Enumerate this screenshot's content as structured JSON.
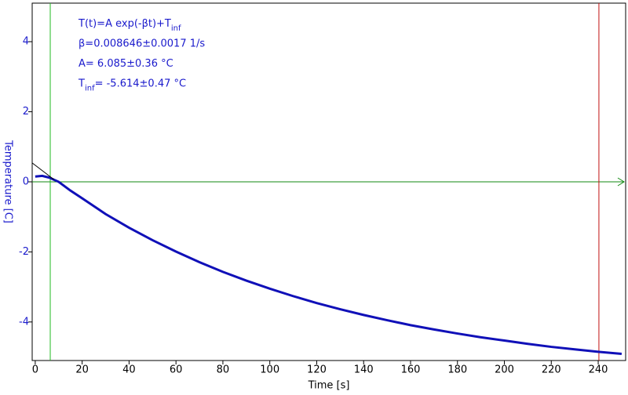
{
  "chart_data": {
    "type": "line",
    "xlabel": "Time [s]",
    "ylabel": "Temperature [C]",
    "xlim": [
      -1.3,
      251.7
    ],
    "ylim": [
      -5.1,
      5.1
    ],
    "xticks": [
      0,
      20,
      40,
      60,
      80,
      100,
      120,
      140,
      160,
      180,
      200,
      220,
      240
    ],
    "yticks": [
      -4,
      -2,
      0,
      2,
      4
    ],
    "series": [
      {
        "color": "#1010b8",
        "width": 3,
        "x": [
          0,
          3,
          6,
          10,
          15,
          20,
          30,
          40,
          50,
          60,
          70,
          80,
          90,
          100,
          110,
          120,
          130,
          140,
          150,
          160,
          170,
          180,
          190,
          200,
          210,
          220,
          230,
          240,
          250
        ],
        "values": [
          0.15,
          0.17,
          0.12,
          0.0,
          -0.25,
          -0.47,
          -0.92,
          -1.31,
          -1.665,
          -1.99,
          -2.292,
          -2.57,
          -2.819,
          -3.05,
          -3.263,
          -3.46,
          -3.636,
          -3.8,
          -3.95,
          -4.09,
          -4.214,
          -4.33,
          -4.437,
          -4.53,
          -4.624,
          -4.71,
          -4.781,
          -4.85,
          -4.91
        ]
      },
      {
        "color": "#000000",
        "width": 1,
        "x": [
          -1.3,
          8
        ],
        "values": [
          0.54,
          0.065
        ]
      }
    ],
    "cursors": [
      {
        "x": 6.4,
        "color": "#22bb22"
      },
      {
        "x": 240.3,
        "color": "#c01010"
      }
    ],
    "hline": {
      "y": 0,
      "color": "#118811"
    },
    "annotations": [
      [
        {
          "text": "T(t)=A exp(-βt)+T",
          "sub": false
        },
        {
          "text": "inf",
          "sub": true
        }
      ],
      [
        {
          "text": "β=0.008646±0.0017 1/s",
          "sub": false
        }
      ],
      [
        {
          "text": "A= 6.085±0.36 °C",
          "sub": false
        }
      ],
      [
        {
          "text": "T",
          "sub": false
        },
        {
          "text": "inf",
          "sub": true
        },
        {
          "text": "= -5.614±0.47 °C",
          "sub": false
        }
      ]
    ]
  }
}
